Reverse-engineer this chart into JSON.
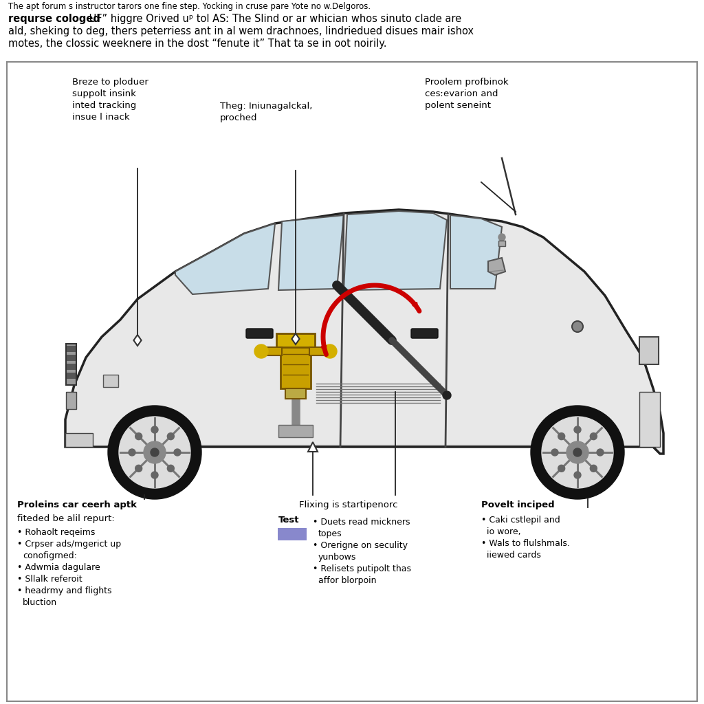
{
  "background_color": "#ffffff",
  "fig_width": 10.24,
  "fig_height": 10.24,
  "header_line1": "The apt forum s instructor tarors one fine step. Yocking in cruse pare Yote no w.Delgoros.",
  "header_line2_bold": "requrse cologed",
  "header_line2_rest": " UF” higgre Orived uᵖ tol ASː The Slind or ar whician whos sinuto clade are",
  "header_line3": "ald, sheking to deg, thers peterriess ant in al wem drachnoes, lindriedued disues mair ishox",
  "header_line4": "motes, the clossic weeknere in the dost “fenute it” That ta se in oot noirily.",
  "label_top_left": "Breze to ploduer\nsuppolt insink\ninted tracking\ninsue l inack",
  "label_top_mid": "Theg: Iniunagalckal,\nproched",
  "label_top_right": "Proolem profbinok\ncesːevarion and\npolent seneint",
  "label_bl_title": "Proleins car ceerh aptk",
  "label_bl_sub": "fiteded be alil repurt:",
  "label_bl_bullets": [
    "Rohaolt reqeims",
    "Crpser ads/mgerict up\n    conofigrned:",
    "Adwmia dagulare",
    "Sllalk referoit",
    "headrmy and flights\n    bluction"
  ],
  "label_bm_title": "Flixing is startipenorc",
  "label_bm_test": "Test",
  "label_bm_bullets": [
    "Duets read mickners\n    topes",
    "Orerigne on seculity\n    yunbows",
    "Relisets putipolt thas\n    affor blorpoin"
  ],
  "label_br_title": "Povelt inciped",
  "label_br_bullets": [
    "Caki cstlepil and\n    io wore,",
    "Wals to flulshmals.\n    iiewed cards"
  ],
  "car_body_color": "#e8e8e8",
  "car_edge_color": "#222222",
  "window_fill": "#c8dde8",
  "wheel_outer": "#111111",
  "wheel_rim": "#dddddd",
  "wheel_hub": "#888888",
  "wheel_bolt": "#777777"
}
